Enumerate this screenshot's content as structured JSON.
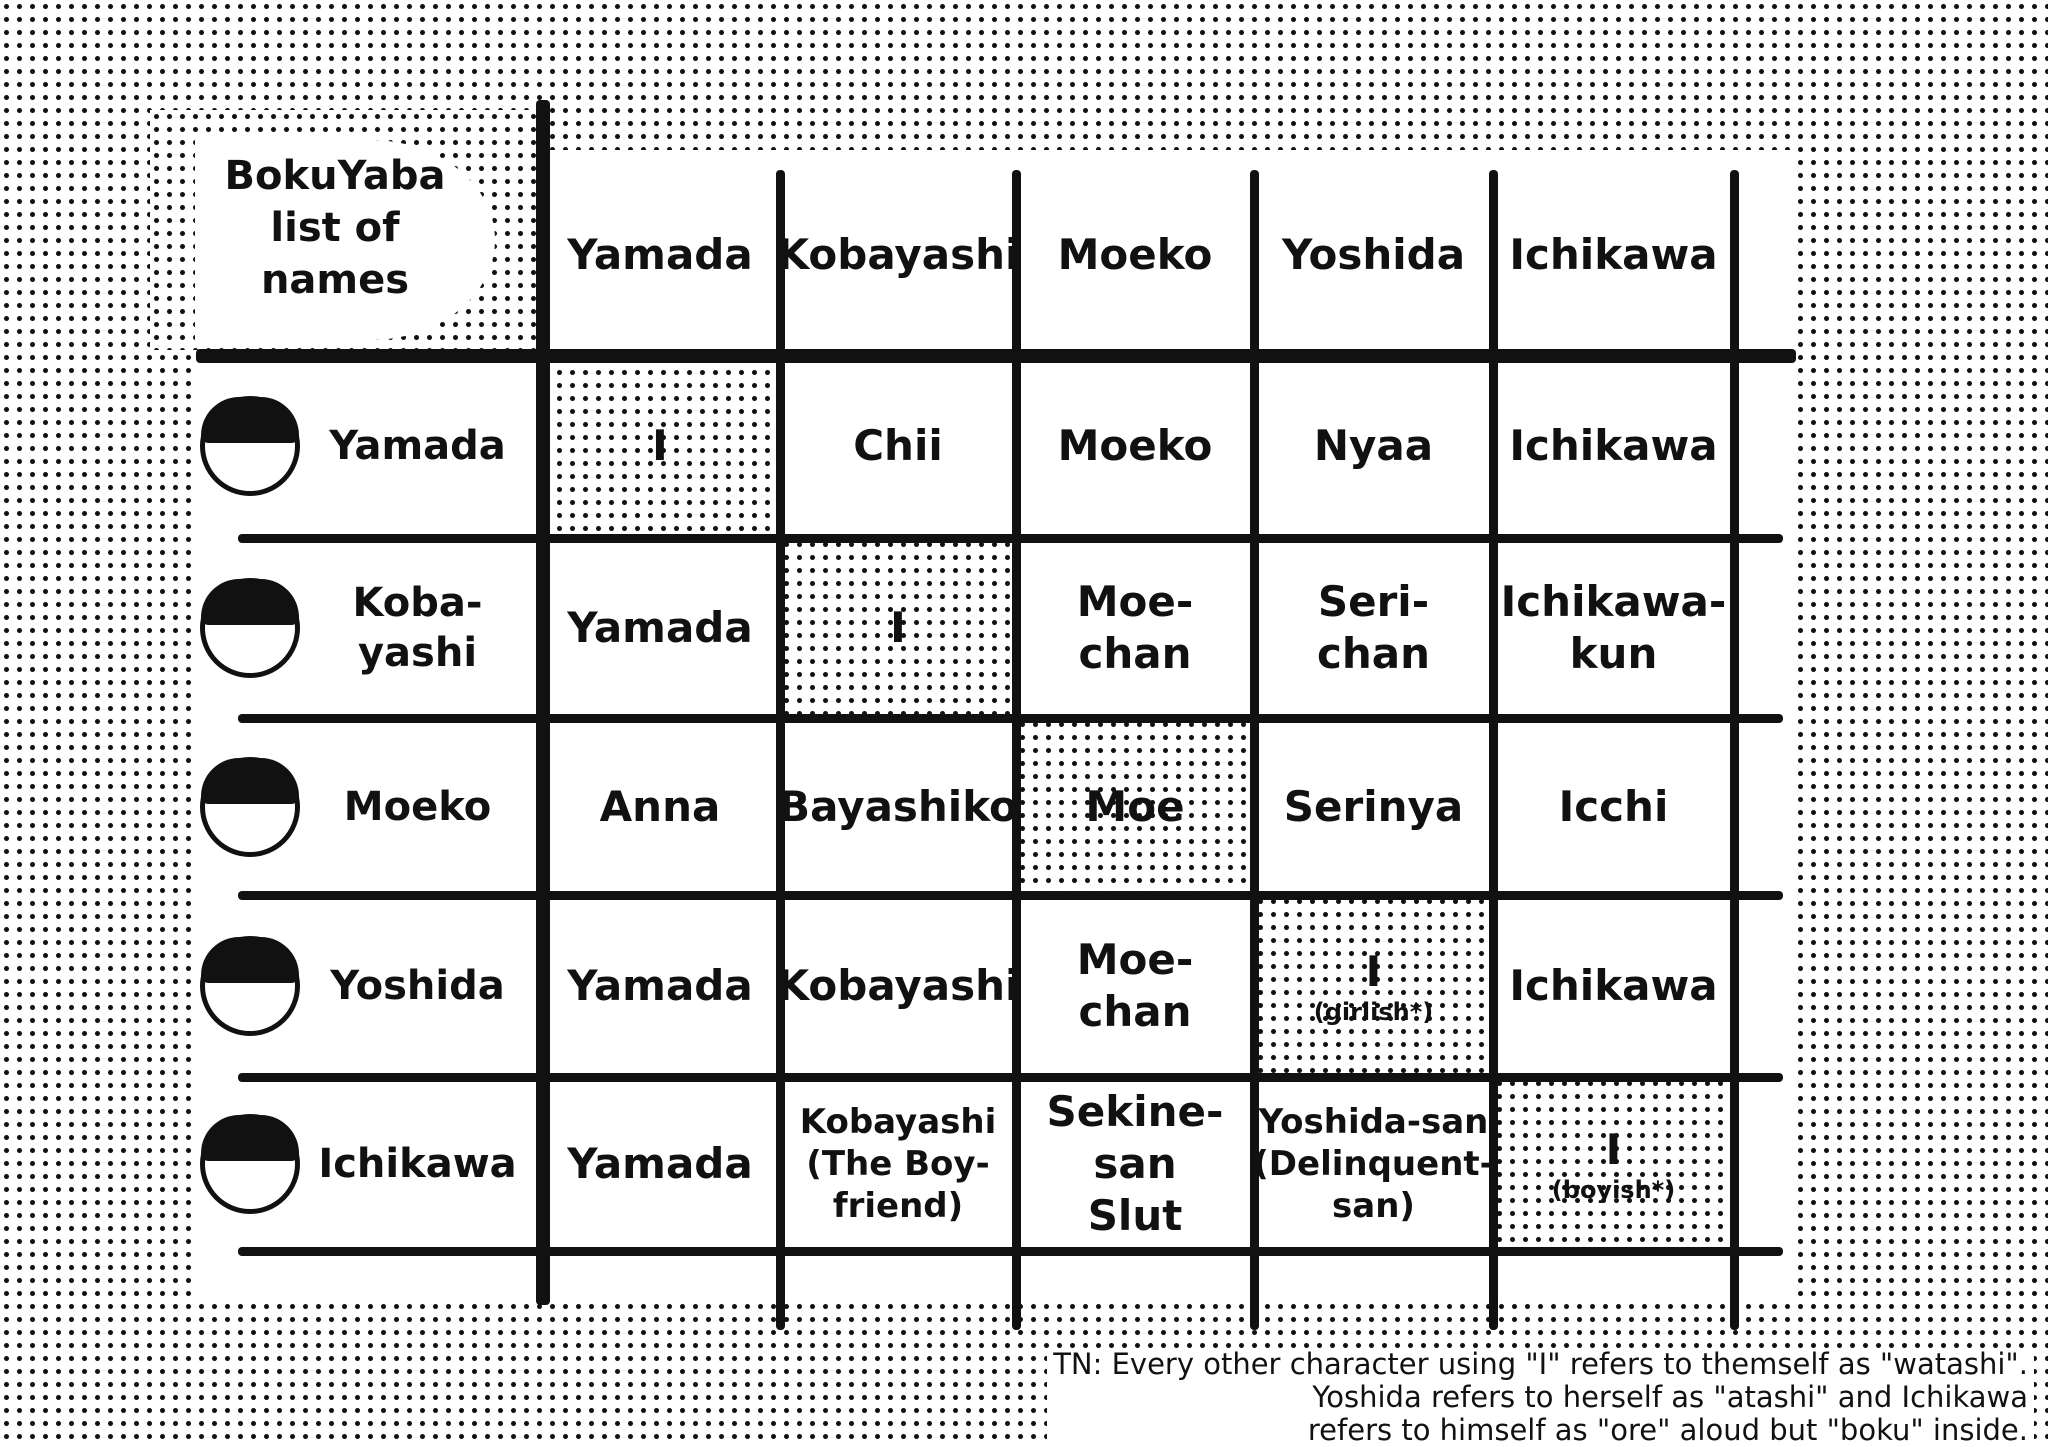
{
  "title": "BokuYaba\nlist of\nnames",
  "columns": [
    "Yamada",
    "Kobayashi",
    "Moeko",
    "Yoshida",
    "Ichikawa"
  ],
  "rows": [
    {
      "name": "Yamada",
      "cells": [
        {
          "text": "I"
        },
        {
          "text": "Chii"
        },
        {
          "text": "Moeko"
        },
        {
          "text": "Nyaa"
        },
        {
          "text": "Ichikawa"
        }
      ]
    },
    {
      "name": "Koba-\nyashi",
      "cells": [
        {
          "text": "Yamada"
        },
        {
          "text": "I"
        },
        {
          "text": "Moe-\nchan"
        },
        {
          "text": "Seri-\nchan"
        },
        {
          "text": "Ichikawa-\nkun"
        }
      ]
    },
    {
      "name": "Moeko",
      "cells": [
        {
          "text": "Anna"
        },
        {
          "text": "Bayashiko"
        },
        {
          "text": "Moe"
        },
        {
          "text": "Serinya"
        },
        {
          "text": "Icchi"
        }
      ]
    },
    {
      "name": "Yoshida",
      "cells": [
        {
          "text": "Yamada"
        },
        {
          "text": "Kobayashi"
        },
        {
          "text": "Moe-\nchan"
        },
        {
          "text": "I",
          "note": "(girlish*)"
        },
        {
          "text": "Ichikawa"
        }
      ]
    },
    {
      "name": "Ichikawa",
      "cells": [
        {
          "text": "Yamada"
        },
        {
          "text": "Kobayashi\n(The Boy-\nfriend)"
        },
        {
          "text": "Sekine-san\nSlut"
        },
        {
          "text": "Yoshida-san\n(Delinquent-\nsan)"
        },
        {
          "text": "I",
          "note": "(boyish*)"
        }
      ]
    }
  ],
  "translator_note": [
    "TN: Every other character using \"I\" refers to themself as \"watashi\".",
    "Yoshida refers to herself as \"atashi\" and Ichikawa",
    "refers to himself as \"ore\" aloud but \"boku\" inside."
  ]
}
